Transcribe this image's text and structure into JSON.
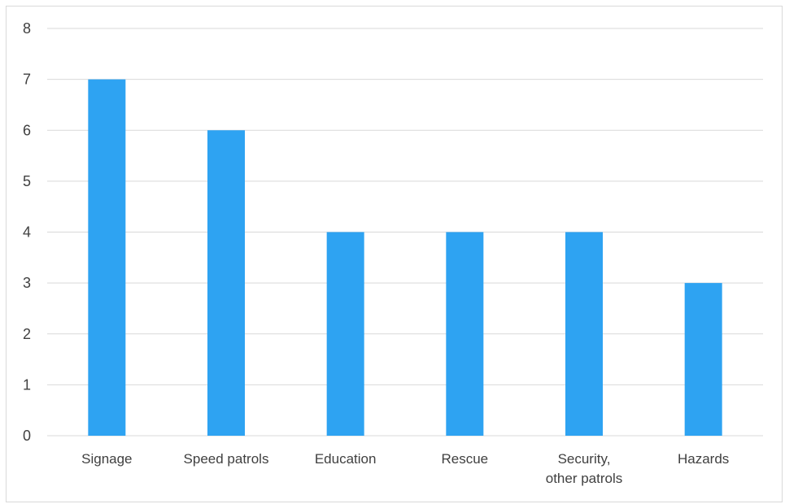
{
  "chart_data": {
    "type": "bar",
    "title": "",
    "xlabel": "",
    "ylabel": "",
    "categories": [
      [
        "Signage"
      ],
      [
        "Speed patrols"
      ],
      [
        "Education"
      ],
      [
        "Rescue"
      ],
      [
        "Security,",
        "other patrols"
      ],
      [
        "Hazards"
      ]
    ],
    "values": [
      7,
      6,
      4,
      4,
      4,
      3
    ],
    "ylim": [
      0,
      8
    ],
    "yticks": [
      "0",
      "1",
      "2",
      "3",
      "4",
      "5",
      "6",
      "7",
      "8"
    ],
    "grid": true,
    "legend": "none",
    "colors": {
      "bar": "#2ea3f2",
      "grid": "#d9d9d9",
      "text": "#404040"
    }
  }
}
